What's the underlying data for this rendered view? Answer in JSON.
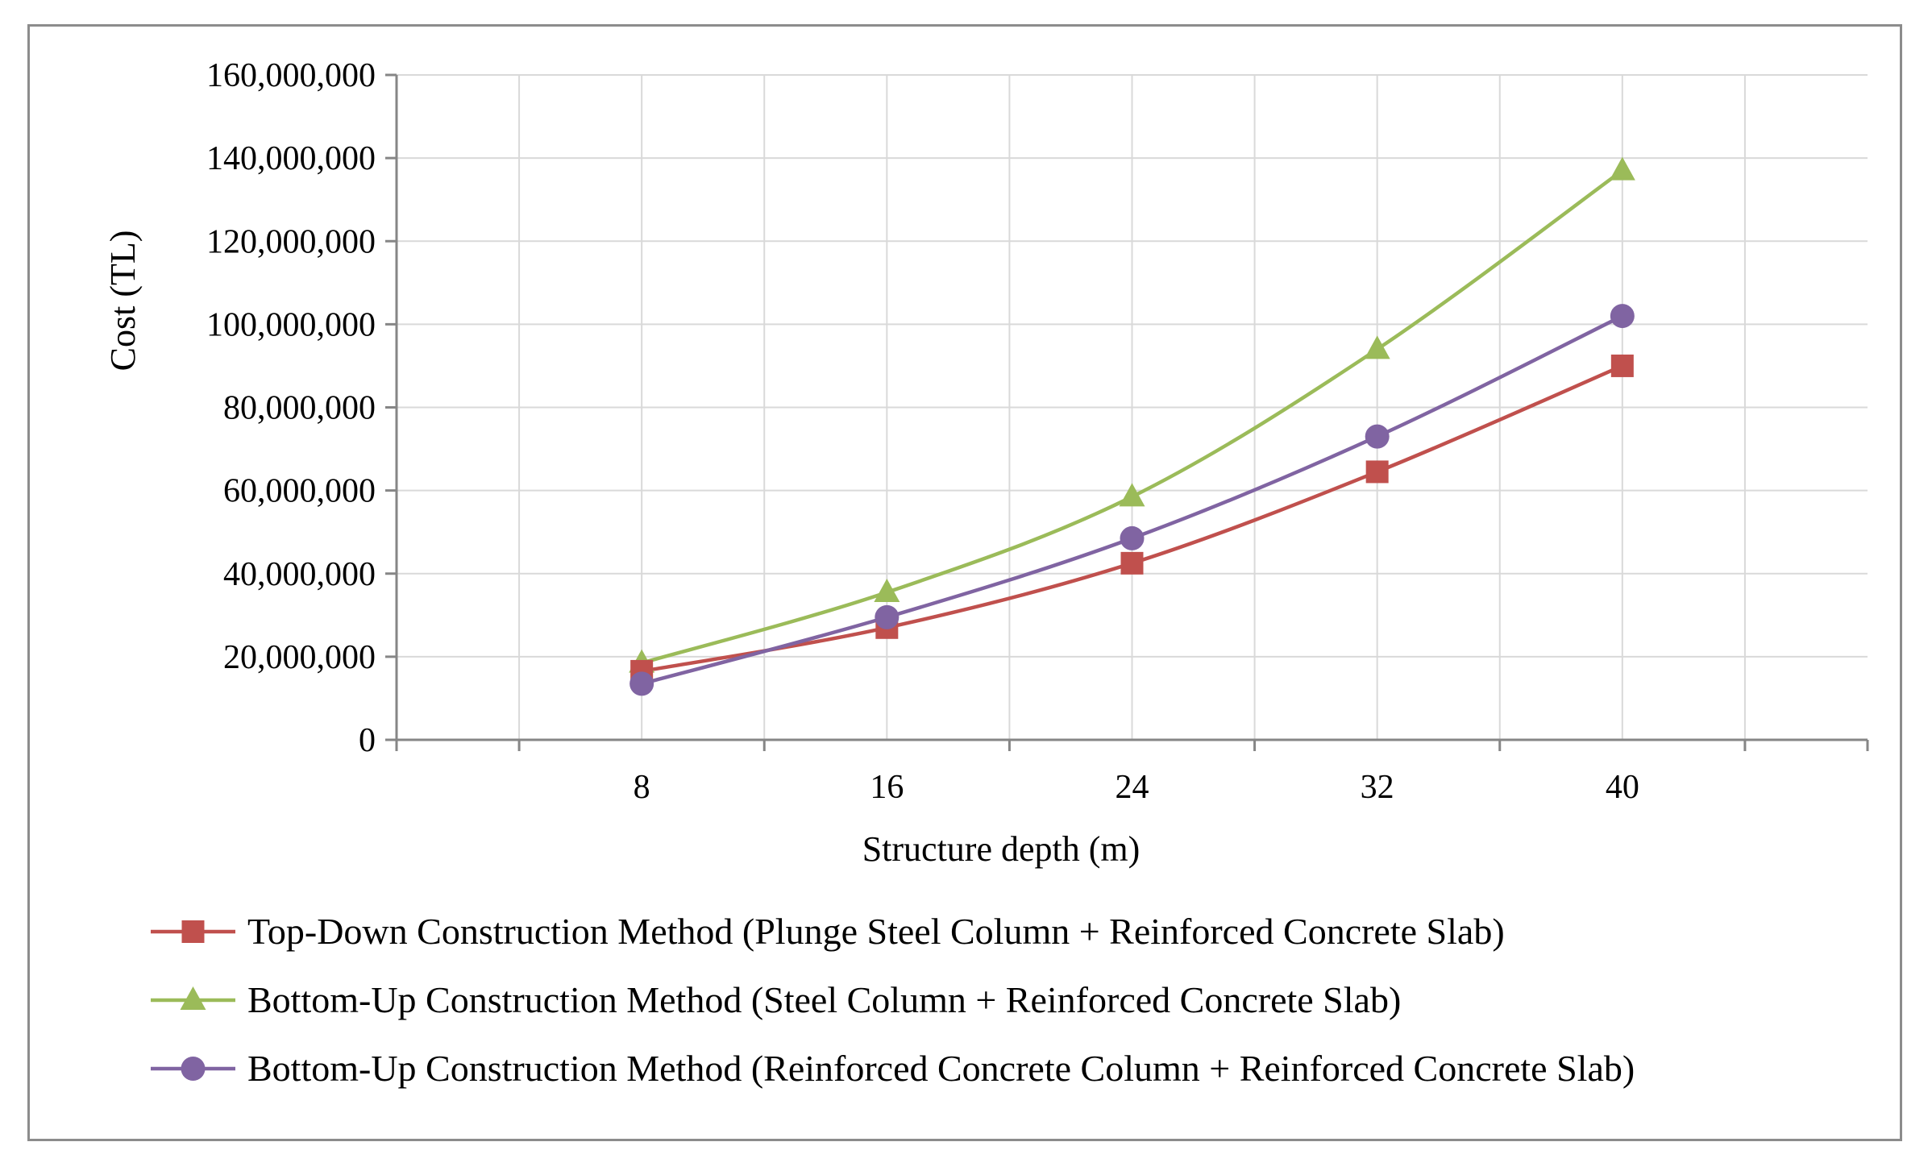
{
  "chart_data": {
    "type": "line",
    "title": "",
    "xlabel": "Structure depth (m)",
    "ylabel": "Cost (TL)",
    "x": [
      8,
      16,
      24,
      32,
      40
    ],
    "x_tick_labels": [
      "8",
      "16",
      "24",
      "32",
      "40"
    ],
    "ylim": [
      0,
      160000000
    ],
    "y_ticks": [
      0,
      20000000,
      40000000,
      60000000,
      80000000,
      100000000,
      120000000,
      140000000,
      160000000
    ],
    "y_tick_labels": [
      "0",
      "20,000,000",
      "40,000,000",
      "60,000,000",
      "80,000,000",
      "100,000,000",
      "120,000,000",
      "140,000,000",
      "160,000,000"
    ],
    "grid": true,
    "legend_position": "bottom",
    "series": [
      {
        "name": "Top-Down Construction Method (Plunge Steel Column + Reinforced Concrete Slab)",
        "marker": "square",
        "color": "#c0504d",
        "values": [
          16500000,
          27000000,
          42500000,
          64500000,
          90000000
        ]
      },
      {
        "name": "Bottom-Up Construction Method (Steel Column + Reinforced Concrete Slab)",
        "marker": "triangle",
        "color": "#9bbb59",
        "values": [
          18500000,
          35500000,
          58500000,
          94000000,
          137000000
        ]
      },
      {
        "name": "Bottom-Up Construction Method (Reinforced Concrete Column + Reinforced Concrete Slab)",
        "marker": "circle",
        "color": "#8064a2",
        "values": [
          13500000,
          29500000,
          48500000,
          73000000,
          102000000
        ]
      }
    ]
  }
}
